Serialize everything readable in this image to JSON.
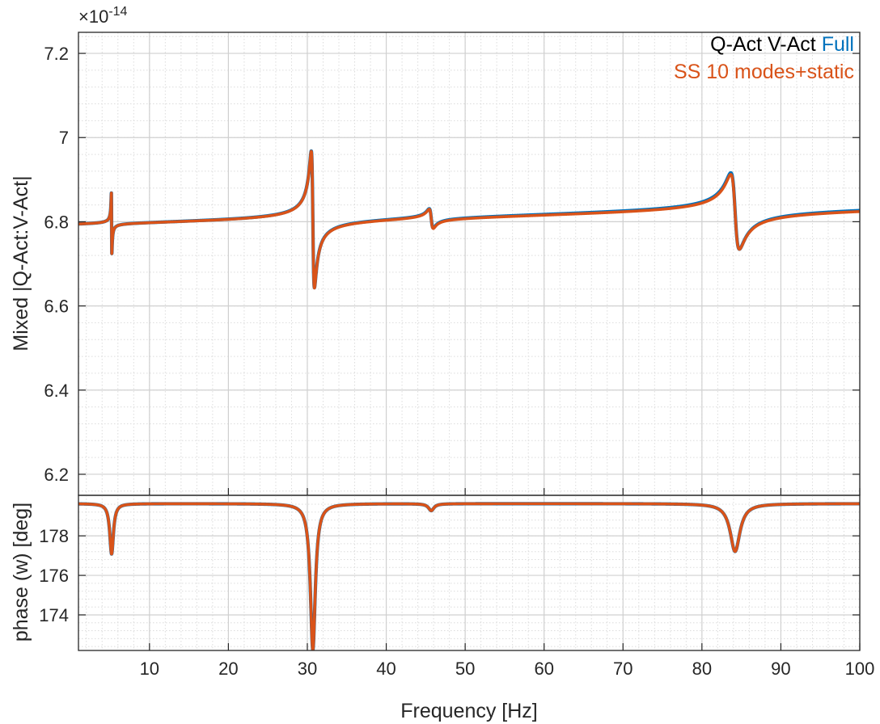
{
  "chart_data": [
    {
      "type": "line",
      "name": "magnitude",
      "ylabel": "Mixed |Q-Act:V-Act|",
      "exponent_label": "×10",
      "exponent_power": "-14",
      "xlim": [
        1,
        100
      ],
      "ylim": [
        6.15,
        7.25
      ],
      "yticks": [
        6.2,
        6.4,
        6.6,
        6.8,
        7,
        7.2
      ],
      "ytick_labels": [
        "6.2",
        "6.4",
        "6.6",
        "6.8",
        "7",
        "7.2"
      ],
      "grid": true,
      "minor_grid": true,
      "legend": {
        "location": "top-right",
        "line1_black": "Q-Act V-Act ",
        "line1_blue": "Full",
        "line2": "SS 10 modes+static"
      },
      "series": [
        {
          "name": "Full",
          "color": "#0072bd",
          "baseline": 6.79,
          "slope": 0.000445,
          "modes": [
            {
              "f": 5.2,
              "amp": 0.0044,
              "g": 0.03
            },
            {
              "f": 30.7,
              "amp": 0.065,
              "g": 0.2
            },
            {
              "f": 45.7,
              "amp": 0.012,
              "g": 0.26
            },
            {
              "f": 84.2,
              "amp": 0.1,
              "g": 0.55
            }
          ]
        },
        {
          "name": "SS 10 modes+static",
          "color": "#d95319",
          "baseline": 6.79,
          "slope": 0.00042,
          "modes": [
            {
              "f": 5.2,
              "amp": 0.0044,
              "g": 0.03
            },
            {
              "f": 30.7,
              "amp": 0.065,
              "g": 0.2
            },
            {
              "f": 45.7,
              "amp": 0.012,
              "g": 0.26
            },
            {
              "f": 84.2,
              "amp": 0.098,
              "g": 0.55
            }
          ]
        }
      ]
    },
    {
      "type": "line",
      "name": "phase",
      "xlabel": "Frequency [Hz]",
      "ylabel": "phase (w) [deg]",
      "xlim": [
        1,
        100
      ],
      "ylim": [
        172.2,
        180.05
      ],
      "xticks": [
        10,
        20,
        30,
        40,
        50,
        60,
        70,
        80,
        90,
        100
      ],
      "xtick_labels": [
        "10",
        "20",
        "30",
        "40",
        "50",
        "60",
        "70",
        "80",
        "90",
        "100"
      ],
      "yticks": [
        174,
        176,
        178
      ],
      "ytick_labels": [
        "174",
        "176",
        "178"
      ],
      "grid": true,
      "minor_grid": true,
      "series": [
        {
          "name": "Full",
          "color": "#0072bd",
          "baseline": 179.63,
          "dips": [
            {
              "f": 5.2,
              "depth": 2.55,
              "w": 0.28
            },
            {
              "f": 30.7,
              "depth": 7.4,
              "w": 0.38
            },
            {
              "f": 45.7,
              "depth": 0.35,
              "w": 0.42
            },
            {
              "f": 84.2,
              "depth": 2.42,
              "w": 0.75
            }
          ]
        },
        {
          "name": "SS 10 modes+static",
          "color": "#d95319",
          "baseline": 179.63,
          "dips": [
            {
              "f": 5.2,
              "depth": 2.55,
              "w": 0.28
            },
            {
              "f": 30.7,
              "depth": 7.4,
              "w": 0.38
            },
            {
              "f": 45.7,
              "depth": 0.35,
              "w": 0.42
            },
            {
              "f": 84.2,
              "depth": 2.42,
              "w": 0.75
            }
          ]
        }
      ]
    }
  ]
}
